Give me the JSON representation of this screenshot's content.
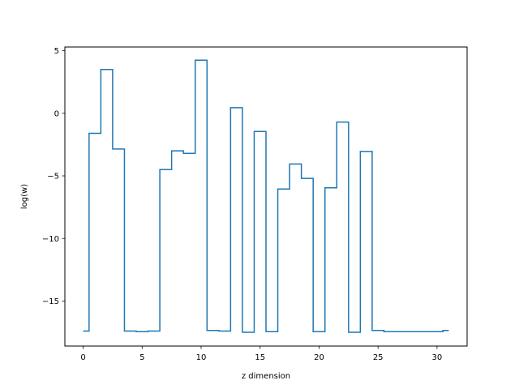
{
  "chart_data": {
    "type": "line",
    "drawstyle": "steps-mid",
    "title": "",
    "xlabel": "z dimension",
    "ylabel": "log(w)",
    "xlim": [
      -1.55,
      32.55
    ],
    "ylim": [
      -18.6,
      5.3
    ],
    "xticks": [
      0,
      5,
      10,
      15,
      20,
      25,
      30
    ],
    "yticks": [
      5,
      0,
      -5,
      -10,
      -15
    ],
    "xtick_labels": [
      "0",
      "5",
      "10",
      "15",
      "20",
      "25",
      "30"
    ],
    "ytick_labels": [
      "5",
      "0",
      "−5",
      "−10",
      "−15"
    ],
    "grid": false,
    "line_color": "#1f77b4",
    "series": [
      {
        "x": [
          0,
          1,
          2,
          3,
          4,
          5,
          6,
          7,
          8,
          9,
          10,
          11,
          12,
          13,
          14,
          15,
          16,
          17,
          18,
          19,
          20,
          21,
          22,
          23,
          24,
          25,
          26,
          27,
          28,
          29,
          30,
          31
        ],
        "y": [
          -17.4,
          -1.6,
          3.5,
          -2.85,
          -17.4,
          -17.45,
          -17.4,
          -4.5,
          -3.0,
          -3.2,
          4.25,
          -17.35,
          -17.4,
          0.45,
          -17.5,
          -1.45,
          -17.45,
          -6.05,
          -4.05,
          -5.2,
          -17.45,
          -5.95,
          -0.7,
          -17.5,
          -3.05,
          -17.35,
          -17.45,
          -17.45,
          -17.45,
          -17.45,
          -17.45,
          -17.35
        ]
      }
    ]
  }
}
